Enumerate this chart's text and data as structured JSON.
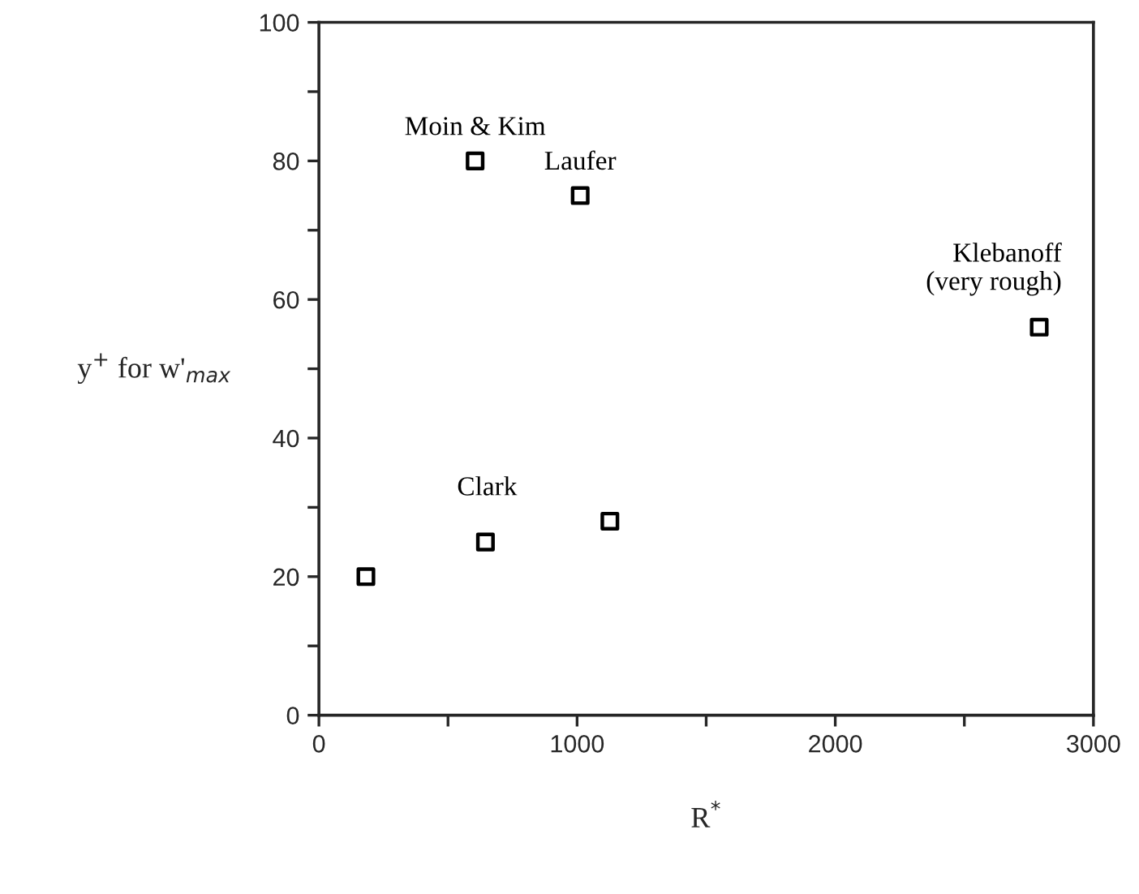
{
  "chart_data": {
    "type": "scatter",
    "xlabel": "R$^{*}$",
    "ylabel": "y$^{+}$ for w'$_{max}$",
    "series": [
      {
        "name": "Moin & Kim",
        "color": "#000000",
        "x": [
          605
        ],
        "values": [
          80
        ]
      },
      {
        "name": "Laufer",
        "color": "#000000",
        "x": [
          1012
        ],
        "values": [
          75
        ]
      },
      {
        "name": "Clark",
        "color": "#000000",
        "x": [
          182,
          645,
          1127
        ],
        "values": [
          20,
          25,
          28
        ]
      },
      {
        "name": "Klebanoff\n(very rough)",
        "color": "#000000",
        "x": [
          2790
        ],
        "values": [
          56
        ]
      }
    ],
    "marker": "square",
    "xlim": [
      0,
      3000
    ],
    "ylim": [
      0,
      100
    ],
    "xticks": [
      0,
      {
        "value": 500,
        "label": null
      },
      1000,
      {
        "value": 1500,
        "label": null
      },
      2000,
      {
        "value": 2500,
        "label": null
      },
      3000
    ],
    "yticks": [
      0,
      {
        "value": 10,
        "label": null
      },
      20,
      {
        "value": 30,
        "label": null
      },
      40,
      {
        "value": 50,
        "label": null
      },
      60,
      {
        "value": 70,
        "label": null
      },
      80,
      {
        "value": 90,
        "label": null
      },
      100
    ],
    "grid": false,
    "legend": false
  }
}
